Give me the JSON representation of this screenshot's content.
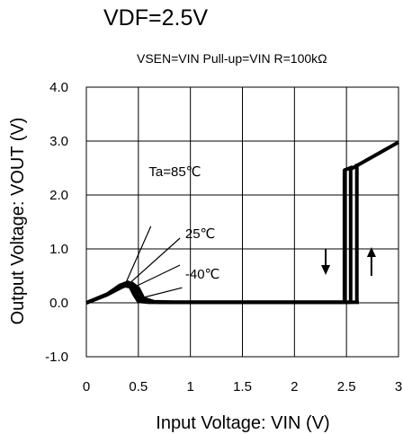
{
  "chart_data": {
    "type": "line",
    "title": "VDF=2.5V",
    "subtitle": "VSEN=VIN Pull-up=VIN R=100kΩ",
    "xlabel": "Input Voltage: VIN (V)",
    "ylabel": "Output Voltage: VOUT (V)",
    "xlim": [
      0,
      3
    ],
    "ylim": [
      -1.0,
      4.0
    ],
    "x_ticks": [
      "0",
      "0.5",
      "1",
      "1.5",
      "2",
      "2.5",
      "3"
    ],
    "x_tick_values": [
      0,
      0.5,
      1,
      1.5,
      2,
      2.5,
      3
    ],
    "y_ticks": [
      "4.0",
      "3.0",
      "2.0",
      "1.0",
      "0.0",
      "-1.0"
    ],
    "y_tick_values": [
      4,
      3,
      2,
      1,
      0,
      -1
    ],
    "grid": true,
    "series": [
      {
        "values": [
          [
            0,
            0
          ],
          [
            0.2,
            0.15
          ],
          [
            0.3,
            0.28
          ],
          [
            0.36,
            0.32
          ],
          [
            0.42,
            0.3
          ],
          [
            0.46,
            0.15
          ],
          [
            0.5,
            0.03
          ],
          [
            0.6,
            0.01
          ],
          [
            2.5,
            0.01
          ],
          [
            2.54,
            0.01
          ]
        ],
        "style": "rise"
      },
      {
        "values": [
          [
            0,
            0
          ],
          [
            0.2,
            0.16
          ],
          [
            0.32,
            0.32
          ],
          [
            0.4,
            0.38
          ],
          [
            0.45,
            0.33
          ],
          [
            0.5,
            0.12
          ],
          [
            0.56,
            0.03
          ],
          [
            0.7,
            0.01
          ],
          [
            2.5,
            0.01
          ]
        ],
        "style": "rise"
      },
      {
        "values": [
          [
            0,
            0
          ],
          [
            0.2,
            0.15
          ],
          [
            0.35,
            0.3
          ],
          [
            0.44,
            0.36
          ],
          [
            0.5,
            0.27
          ],
          [
            0.55,
            0.08
          ],
          [
            0.65,
            0.02
          ],
          [
            0.85,
            0.01
          ],
          [
            2.62,
            0.01
          ]
        ],
        "style": "rise"
      },
      {
        "values": [
          [
            2.54,
            0.01
          ],
          [
            2.54,
            2.48
          ],
          [
            3.0,
            2.98
          ]
        ],
        "style": "detect"
      },
      {
        "values": [
          [
            2.48,
            0.01
          ],
          [
            2.48,
            2.46
          ],
          [
            2.56,
            2.52
          ]
        ],
        "style": "release"
      },
      {
        "values": [
          [
            2.6,
            0.01
          ],
          [
            2.6,
            2.58
          ]
        ],
        "style": "release"
      }
    ],
    "annotations": [
      {
        "text": "Ta=85℃",
        "x": 0.6,
        "y": 2.35
      },
      {
        "text": "25℃",
        "x": 0.95,
        "y": 1.2
      },
      {
        "text": "-40℃",
        "x": 0.95,
        "y": 0.45
      }
    ],
    "leaders": [
      {
        "from": [
          0.62,
          1.42
        ],
        "to": [
          0.37,
          0.33
        ]
      },
      {
        "from": [
          0.9,
          1.2
        ],
        "to": [
          0.42,
          0.37
        ]
      },
      {
        "from": [
          0.9,
          0.7
        ],
        "to": [
          0.47,
          0.3
        ]
      },
      {
        "from": [
          0.92,
          0.28
        ],
        "to": [
          0.55,
          0.1
        ]
      }
    ],
    "arrows": [
      {
        "direction": "down",
        "x": 2.3,
        "y_from": 1.0,
        "y_to": 0.55
      },
      {
        "direction": "up",
        "x": 2.74,
        "y_from": 0.5,
        "y_to": 1.0
      }
    ]
  }
}
